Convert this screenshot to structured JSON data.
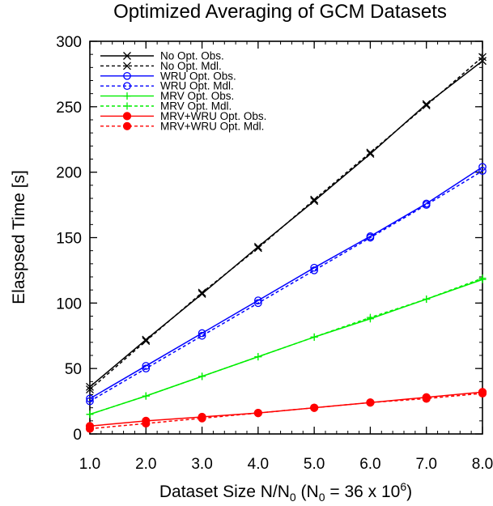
{
  "chart_data": {
    "type": "line",
    "title": "Optimized Averaging of GCM Datasets",
    "xlabel": {
      "main": "Dataset Size N/N",
      "sub0": "0",
      "open": " (N",
      "sub1": "0",
      "mid": " = 36 x 10",
      "sup": "6",
      "close": ")"
    },
    "ylabel": "Elaspsed Time [s]",
    "xlim": [
      1,
      8
    ],
    "ylim": [
      0,
      300
    ],
    "x": [
      1,
      2,
      3,
      4,
      5,
      6,
      7,
      8
    ],
    "x_tick_labels": [
      "1.0",
      "2.0",
      "3.0",
      "4.0",
      "5.0",
      "6.0",
      "7.0",
      "8.0"
    ],
    "y_ticks": [
      0,
      50,
      100,
      150,
      200,
      250,
      300
    ],
    "y_tick_labels": [
      "0",
      "50",
      "100",
      "150",
      "200",
      "250",
      "300"
    ],
    "grid": false,
    "legend_position": "top-left",
    "series": [
      {
        "name": "No Opt. Obs.",
        "color": "#000000",
        "dash": "solid",
        "marker": "x",
        "values": [
          36,
          72,
          107,
          143,
          178,
          214,
          252,
          285
        ]
      },
      {
        "name": "No Opt. Mdl.",
        "color": "#000000",
        "dash": "dashed",
        "marker": "x",
        "values": [
          34,
          71,
          108,
          142,
          179,
          215,
          251,
          288
        ]
      },
      {
        "name": "WRU Opt. Obs.",
        "color": "#0000ff",
        "dash": "solid",
        "marker": "circle-open",
        "values": [
          27,
          52,
          77,
          102,
          127,
          151,
          176,
          204
        ]
      },
      {
        "name": "WRU Opt. Mdl.",
        "color": "#0000ff",
        "dash": "dashed",
        "marker": "circle-open",
        "values": [
          25,
          50,
          75,
          100,
          125,
          150,
          175,
          201
        ]
      },
      {
        "name": "MRV Opt. Obs.",
        "color": "#00ee00",
        "dash": "solid",
        "marker": "plus",
        "values": [
          15,
          29,
          44,
          59,
          74,
          88,
          103,
          118
        ]
      },
      {
        "name": "MRV Opt. Mdl.",
        "color": "#00ee00",
        "dash": "dashed",
        "marker": "plus",
        "values": [
          15,
          29,
          44,
          59,
          74,
          89,
          103,
          119
        ]
      },
      {
        "name": "MRV+WRU Opt. Obs.",
        "color": "#ff0000",
        "dash": "solid",
        "marker": "circle-filled",
        "values": [
          6,
          10,
          13,
          16,
          20,
          24,
          28,
          32
        ]
      },
      {
        "name": "MRV+WRU Opt. Mdl.",
        "color": "#ff0000",
        "dash": "dashed",
        "marker": "circle-filled",
        "values": [
          4,
          8,
          12,
          16,
          20,
          24,
          27,
          31
        ]
      }
    ]
  }
}
